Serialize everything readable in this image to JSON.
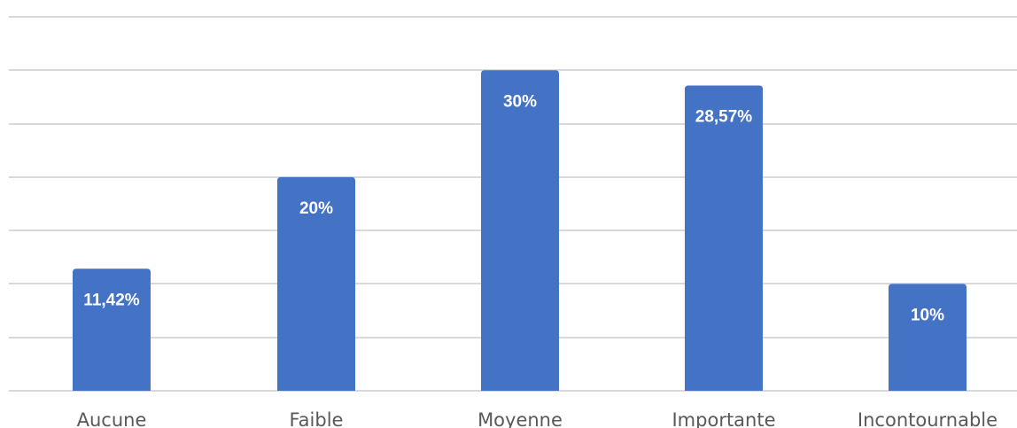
{
  "chart_data": {
    "type": "bar",
    "categories": [
      "Aucune",
      "Faible",
      "Moyenne",
      "Importante",
      "Incontournable"
    ],
    "values": [
      11.42,
      20,
      30,
      28.57,
      10
    ],
    "data_labels": [
      "11,42%",
      "20%",
      "30%",
      "28,57%",
      "10%"
    ],
    "title": "",
    "xlabel": "",
    "ylabel": "",
    "ylim": [
      0,
      35
    ],
    "grid": true,
    "legend": "none",
    "colors": {
      "bar": "#4472c4",
      "grid": "#d9d9d9",
      "tick_text": "#595959",
      "label_text": "#ffffff"
    }
  }
}
